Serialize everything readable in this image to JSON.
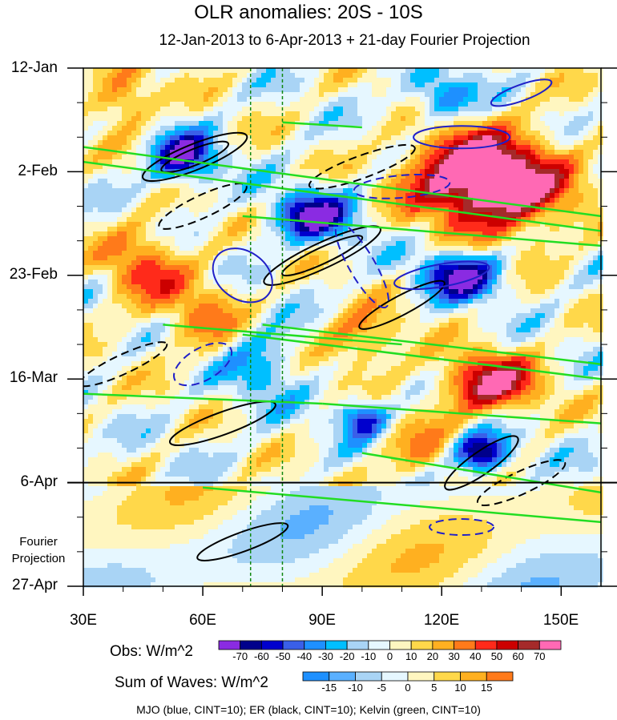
{
  "chart_data": {
    "type": "heatmap",
    "title": "OLR anomalies: 20S - 10S",
    "subtitle": "12-Jan-2013 to 6-Apr-2013 + 21-day Fourier Projection",
    "x_ticks": [
      "30E",
      "60E",
      "90E",
      "120E",
      "150E"
    ],
    "x_tick_values": [
      30,
      60,
      90,
      120,
      150
    ],
    "xlim": [
      30,
      160
    ],
    "y_ticks": [
      "12-Jan",
      "2-Feb",
      "23-Feb",
      "16-Mar",
      "6-Apr",
      "27-Apr"
    ],
    "y_tick_days": [
      0,
      21,
      42,
      63,
      84,
      105
    ],
    "y_axis_direction": "time increases downward",
    "forecast_label": "Fourier Projection",
    "forecast_start": "6-Apr",
    "reference_lines_lon": [
      72,
      80
    ],
    "obs_legend": {
      "label": "Obs: W/m^2",
      "levels": [
        "-70",
        "-60",
        "-50",
        "-40",
        "-30",
        "-20",
        "-10",
        "0",
        "10",
        "20",
        "30",
        "40",
        "50",
        "60",
        "70"
      ],
      "colors": [
        "#8a2be2",
        "#00008b",
        "#0000cd",
        "#3a5fe8",
        "#1e90ff",
        "#00bfff",
        "#a9d4f5",
        "#e6f7ff",
        "#fff6c0",
        "#ffd84a",
        "#ffb020",
        "#ff7a1a",
        "#ff2a1a",
        "#cc0000",
        "#a52a2a",
        "#ff69b4"
      ]
    },
    "waves_legend": {
      "label": "Sum of Waves: W/m^2",
      "levels": [
        "-15",
        "-10",
        "-5",
        "0",
        "5",
        "10",
        "15"
      ],
      "colors": [
        "#1e90ff",
        "#5ab0ff",
        "#a9d4f5",
        "#e6f7ff",
        "#fff6c0",
        "#ffd84a",
        "#ffb020",
        "#ff7a1a"
      ]
    },
    "contours": "MJO (blue, CINT=10); ER (black, CINT=10); Kelvin (green, CINT=10)",
    "contour_colors": {
      "MJO": "#2020c8",
      "ER": "#000000",
      "Kelvin": "#22dd22"
    }
  }
}
